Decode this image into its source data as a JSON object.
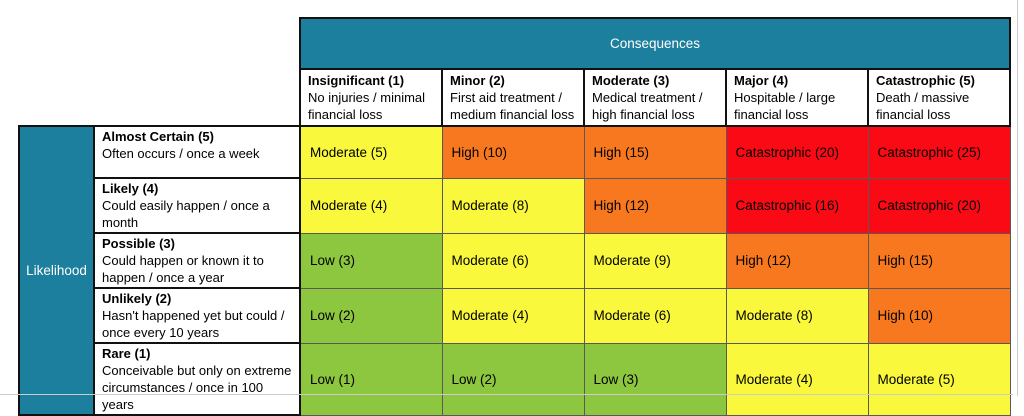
{
  "matrix": {
    "consequences_label": "Consequences",
    "likelihood_label": "Likelihood",
    "colors": {
      "teal": "#1C7F9E",
      "low": "#8DC63F",
      "moderate": "#F9F83D",
      "high": "#F8781F",
      "catastrophic": "#FA0A14"
    },
    "columns": [
      {
        "title": "Insignificant (1)",
        "desc": "No injuries / minimal financial loss"
      },
      {
        "title": "Minor (2)",
        "desc": "First aid treatment / medium financial loss"
      },
      {
        "title": "Moderate (3)",
        "desc": "Medical treatment / high financial loss"
      },
      {
        "title": "Major (4)",
        "desc": "Hospitable / large financial loss"
      },
      {
        "title": "Catastrophic (5)",
        "desc": "Death / massive financial loss"
      }
    ],
    "rows": [
      {
        "title": "Almost Certain (5)",
        "desc": "Often occurs / once a week",
        "cells": [
          {
            "label": "Moderate (5)",
            "level": "moderate"
          },
          {
            "label": "High (10)",
            "level": "high"
          },
          {
            "label": "High (15)",
            "level": "high"
          },
          {
            "label": "Catastrophic (20)",
            "level": "catastrophic"
          },
          {
            "label": "Catastrophic (25)",
            "level": "catastrophic"
          }
        ]
      },
      {
        "title": "Likely (4)",
        "desc": "Could easily happen / once a month",
        "cells": [
          {
            "label": "Moderate (4)",
            "level": "moderate"
          },
          {
            "label": "Moderate (8)",
            "level": "moderate"
          },
          {
            "label": "High (12)",
            "level": "high"
          },
          {
            "label": "Catastrophic (16)",
            "level": "catastrophic"
          },
          {
            "label": "Catastrophic (20)",
            "level": "catastrophic"
          }
        ]
      },
      {
        "title": "Possible (3)",
        "desc": "Could happen or known it to happen / once a year",
        "cells": [
          {
            "label": "Low (3)",
            "level": "low"
          },
          {
            "label": "Moderate (6)",
            "level": "moderate"
          },
          {
            "label": "Moderate (9)",
            "level": "moderate"
          },
          {
            "label": "High (12)",
            "level": "high"
          },
          {
            "label": "High (15)",
            "level": "high"
          }
        ]
      },
      {
        "title": "Unlikely (2)",
        "desc": "Hasn't happened yet but could / once every 10 years",
        "cells": [
          {
            "label": "Low (2)",
            "level": "low"
          },
          {
            "label": "Moderate (4)",
            "level": "moderate"
          },
          {
            "label": "Moderate (6)",
            "level": "moderate"
          },
          {
            "label": "Moderate (8)",
            "level": "moderate"
          },
          {
            "label": "High (10)",
            "level": "high"
          }
        ]
      },
      {
        "title": "Rare (1)",
        "desc": "Conceivable but only on extreme circumstances / once in 100 years",
        "cells": [
          {
            "label": "Low (1)",
            "level": "low"
          },
          {
            "label": "Low (2)",
            "level": "low"
          },
          {
            "label": "Low (3)",
            "level": "low"
          },
          {
            "label": "Moderate (4)",
            "level": "moderate"
          },
          {
            "label": "Moderate (5)",
            "level": "moderate"
          }
        ]
      }
    ]
  }
}
